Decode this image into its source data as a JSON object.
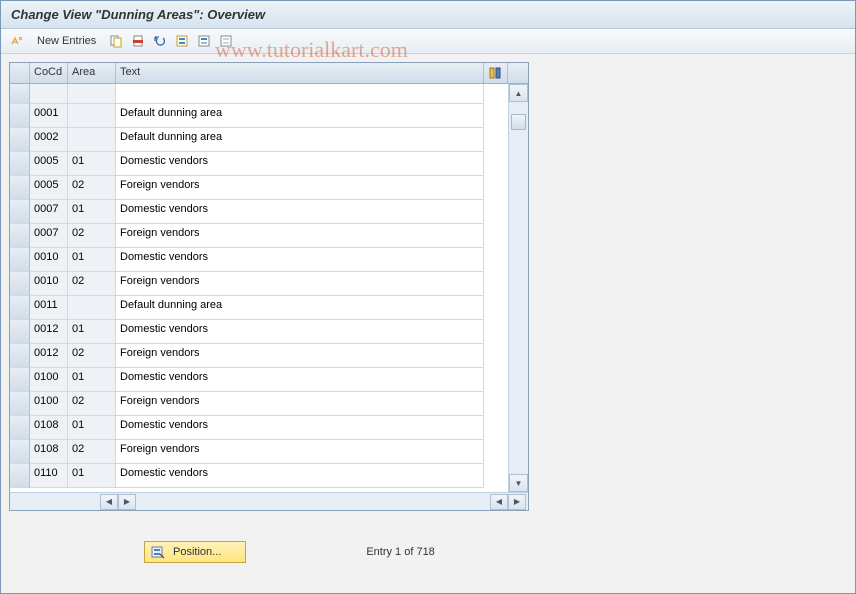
{
  "title": "Change View \"Dunning Areas\": Overview",
  "watermark": "www.tutorialkart.com",
  "toolbar": {
    "new_entries_label": "New Entries"
  },
  "table": {
    "columns": {
      "cocd": "CoCd",
      "area": "Area",
      "text": "Text"
    },
    "rows": [
      {
        "cocd": "0001",
        "area": "",
        "text": "Default dunning area"
      },
      {
        "cocd": "0002",
        "area": "",
        "text": "Default dunning area"
      },
      {
        "cocd": "0005",
        "area": "01",
        "text": "Domestic vendors"
      },
      {
        "cocd": "0005",
        "area": "02",
        "text": "Foreign vendors"
      },
      {
        "cocd": "0007",
        "area": "01",
        "text": "Domestic vendors"
      },
      {
        "cocd": "0007",
        "area": "02",
        "text": "Foreign vendors"
      },
      {
        "cocd": "0010",
        "area": "01",
        "text": "Domestic vendors"
      },
      {
        "cocd": "0010",
        "area": "02",
        "text": "Foreign vendors"
      },
      {
        "cocd": "0011",
        "area": "",
        "text": "Default dunning area"
      },
      {
        "cocd": "0012",
        "area": "01",
        "text": "Domestic vendors"
      },
      {
        "cocd": "0012",
        "area": "02",
        "text": "Foreign vendors"
      },
      {
        "cocd": "0100",
        "area": "01",
        "text": "Domestic vendors"
      },
      {
        "cocd": "0100",
        "area": "02",
        "text": "Foreign vendors"
      },
      {
        "cocd": "0108",
        "area": "01",
        "text": "Domestic vendors"
      },
      {
        "cocd": "0108",
        "area": "02",
        "text": "Foreign vendors"
      },
      {
        "cocd": "0110",
        "area": "01",
        "text": "Domestic vendors"
      }
    ]
  },
  "footer": {
    "position_label": "Position...",
    "entry_status": "Entry 1 of 718"
  },
  "colors": {
    "header_bg_top": "#eef3f8",
    "header_bg_bottom": "#d6e3ef",
    "border": "#7a99b8",
    "button_bg_top": "#fff2b8",
    "button_bg_bottom": "#ffe680",
    "watermark_color": "rgba(204,51,0,0.4)"
  }
}
